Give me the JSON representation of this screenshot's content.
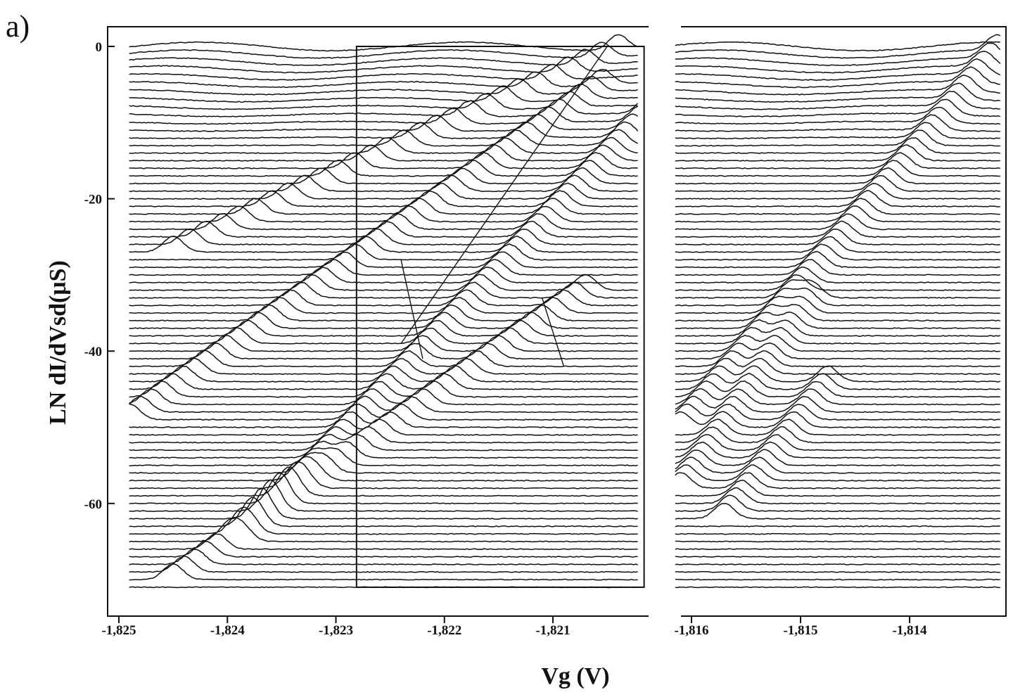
{
  "panel_label": "a)",
  "chart_data": {
    "type": "line",
    "description_note": "",
    "ylabel": "LN dI/dVsd(μS)",
    "xlabel": "Vg (V)",
    "ylim": [
      -74,
      3
    ],
    "yticks": [
      0,
      -20,
      -40,
      -60
    ],
    "ytick_labels": [
      "0",
      "-20",
      "-40",
      "-60"
    ],
    "grid": false,
    "panels": [
      {
        "name": "left-panel",
        "xlim": [
          -1.8251,
          -1.8202
        ],
        "xticks": [
          -1.825,
          -1.824,
          -1.823,
          -1.822,
          -1.821
        ],
        "xtick_labels": [
          "-1,825",
          "-1,824",
          "-1,823",
          "-1,822",
          "-1,821"
        ],
        "trace_count": 72,
        "trace_offset": -1.0,
        "highlight_box": {
          "x": [
            -1.82281,
            -1.82016
          ],
          "y": [
            -71,
            0
          ]
        },
        "diagonal_features": [
          {
            "from": [
              -1.8245,
              -27
            ],
            "to": [
              -1.8204,
              0
            ]
          },
          {
            "from": [
              -1.8249,
              -49
            ],
            "to": [
              -1.82055,
              -5
            ]
          },
          {
            "from": [
              -1.8238,
              -64
            ],
            "to": [
              -1.8202,
              -10
            ]
          },
          {
            "from": [
              -1.8245,
              -70
            ],
            "to": [
              -1.8207,
              -32
            ]
          }
        ],
        "guide_lines": [
          {
            "from": [
              -1.8224,
              -39
            ],
            "to": [
              -1.8205,
              0
            ]
          },
          {
            "from": [
              -1.8224,
              -28
            ],
            "to": [
              -1.8222,
              -41
            ]
          },
          {
            "from": [
              -1.8211,
              -33
            ],
            "to": [
              -1.8209,
              -42
            ]
          }
        ]
      },
      {
        "name": "right-panel",
        "xlim": [
          -1.81615,
          -1.81315
        ],
        "xticks": [
          -1.816,
          -1.815,
          -1.814
        ],
        "xtick_labels": [
          "-1,816",
          "-1,815",
          "-1,814"
        ],
        "trace_count": 72,
        "trace_offset": -1.0,
        "diagonal_features": [
          {
            "from": [
              -1.8161,
              -50
            ],
            "to": [
              -1.8132,
              -1
            ]
          },
          {
            "from": [
              -1.8161,
              -58
            ],
            "to": [
              -1.8149,
              -33
            ]
          },
          {
            "from": [
              -1.8157,
              -62
            ],
            "to": [
              -1.81475,
              -44
            ]
          }
        ]
      }
    ]
  }
}
